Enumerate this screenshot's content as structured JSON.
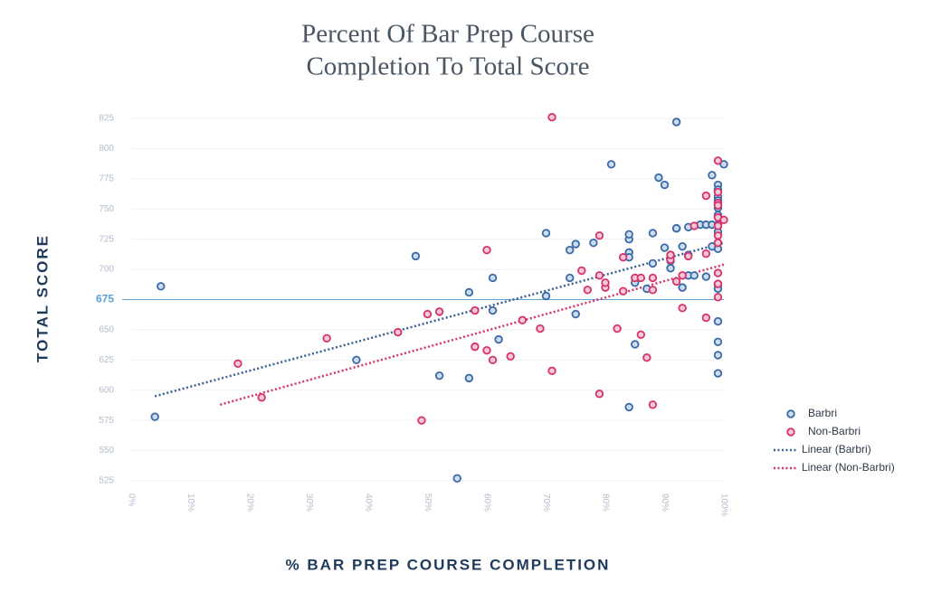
{
  "chart_data": {
    "type": "scatter",
    "title": "Percent Of Bar Prep Course",
    "title_line2": "Completion To Total Score",
    "x_label": "% BAR PREP COURSE COMPLETION",
    "y_label": "TOTAL SCORE",
    "xlim": [
      0,
      100
    ],
    "ylim": [
      525,
      825
    ],
    "xticks": [
      {
        "value": 0,
        "label": "0%"
      },
      {
        "value": 10,
        "label": "10%"
      },
      {
        "value": 20,
        "label": "20%"
      },
      {
        "value": 30,
        "label": "30%"
      },
      {
        "value": 40,
        "label": "40%"
      },
      {
        "value": 50,
        "label": "50%"
      },
      {
        "value": 60,
        "label": "60%"
      },
      {
        "value": 70,
        "label": "70%"
      },
      {
        "value": 80,
        "label": "80%"
      },
      {
        "value": 90,
        "label": "90%"
      },
      {
        "value": 100,
        "label": "100%"
      }
    ],
    "yticks": [
      525,
      550,
      575,
      600,
      625,
      650,
      675,
      700,
      725,
      750,
      775,
      800,
      825
    ],
    "grid": true,
    "reference_y": 675,
    "reference_color": "#5ba3d6",
    "series": [
      {
        "name": "Barbri",
        "color": "#3a6aa8",
        "fill": "#cddcef",
        "x": [
          5,
          4,
          38,
          48,
          52,
          55,
          57,
          57,
          61,
          61,
          62,
          70,
          70,
          74,
          74,
          75,
          75,
          78,
          81,
          84,
          84,
          84,
          84,
          84,
          85,
          85,
          87,
          88,
          88,
          89,
          90,
          90,
          91,
          91,
          92,
          91,
          92,
          92,
          93,
          93,
          94,
          94,
          94,
          95,
          96,
          97,
          97,
          98,
          98,
          98,
          99,
          99,
          99,
          99,
          99,
          100,
          99,
          99,
          99,
          99,
          99,
          99,
          99,
          99,
          99,
          99,
          99,
          99,
          99
        ],
        "values": [
          686,
          578,
          625,
          711,
          612,
          527,
          681,
          610,
          666,
          693,
          642,
          730,
          678,
          716,
          693,
          721,
          663,
          722,
          787,
          725,
          729,
          714,
          710,
          586,
          638,
          689,
          684,
          705,
          730,
          776,
          718,
          770,
          701,
          712,
          734,
          707,
          822,
          734,
          685,
          719,
          712,
          735,
          695,
          695,
          737,
          694,
          737,
          737,
          778,
          719,
          614,
          737,
          717,
          629,
          640,
          787,
          657,
          770,
          766,
          760,
          757,
          754,
          751,
          745,
          736,
          731,
          722,
          687,
          684
        ]
      },
      {
        "name": "Non-Barbri",
        "color": "#d6336c",
        "fill": "#f7c9d7",
        "x": [
          18,
          22,
          33,
          45,
          49,
          50,
          52,
          58,
          58,
          60,
          60,
          61,
          64,
          66,
          69,
          71,
          71,
          76,
          77,
          79,
          79,
          79,
          80,
          80,
          82,
          83,
          83,
          85,
          86,
          86,
          87,
          88,
          88,
          88,
          91,
          91,
          92,
          93,
          93,
          93,
          94,
          95,
          97,
          97,
          97,
          99,
          99,
          99,
          99,
          99,
          99,
          99,
          99,
          99,
          99,
          99,
          100
        ],
        "values": [
          622,
          594,
          643,
          648,
          575,
          663,
          665,
          666,
          636,
          716,
          633,
          625,
          628,
          658,
          651,
          826,
          616,
          699,
          683,
          597,
          728,
          695,
          685,
          689,
          651,
          710,
          682,
          693,
          693,
          646,
          627,
          588,
          693,
          683,
          708,
          712,
          690,
          668,
          695,
          695,
          711,
          736,
          761,
          660,
          713,
          755,
          728,
          790,
          764,
          753,
          743,
          736,
          722,
          697,
          688,
          677,
          741
        ]
      }
    ],
    "trendlines": [
      {
        "name": "Linear (Barbri)",
        "color": "#3a5f94",
        "x": [
          4,
          100
        ],
        "values": [
          595,
          722
        ]
      },
      {
        "name": "Linear (Non-Barbri)",
        "color": "#d6336c",
        "x": [
          15,
          100
        ],
        "values": [
          588,
          704
        ]
      }
    ]
  }
}
